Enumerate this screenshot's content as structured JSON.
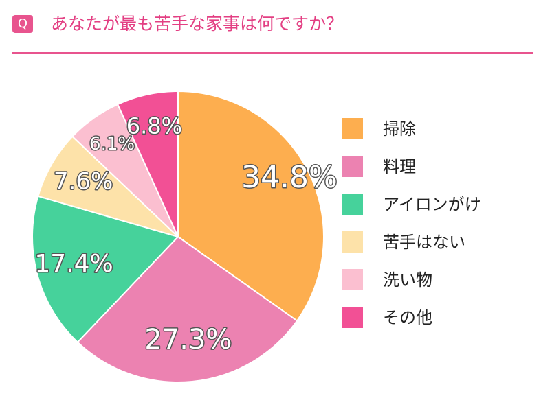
{
  "header": {
    "badge": "Q",
    "question": "あなたが最も苦手な家事は何ですか？"
  },
  "chart_data": {
    "type": "pie",
    "categories": [
      "掃除",
      "料理",
      "アイロンがけ",
      "苦手はない",
      "洗い物",
      "その他"
    ],
    "values": [
      34.8,
      27.3,
      17.4,
      7.6,
      6.1,
      6.8
    ],
    "labels": [
      "34.8%",
      "27.3%",
      "17.4%",
      "7.6%",
      "6.1%",
      "6.8%"
    ],
    "colors": [
      "#fdae4f",
      "#ec82b1",
      "#46d29b",
      "#fde2a9",
      "#fbbfd0",
      "#f25095"
    ],
    "legend_position": "right",
    "start": "top, clockwise"
  },
  "legend": [
    {
      "label": "掃除",
      "color": "#fdae4f"
    },
    {
      "label": "料理",
      "color": "#ec82b1"
    },
    {
      "label": "アイロンがけ",
      "color": "#46d29b"
    },
    {
      "label": "苦手はない",
      "color": "#fde2a9"
    },
    {
      "label": "洗い物",
      "color": "#fbbfd0"
    },
    {
      "label": "その他",
      "color": "#f25095"
    }
  ]
}
